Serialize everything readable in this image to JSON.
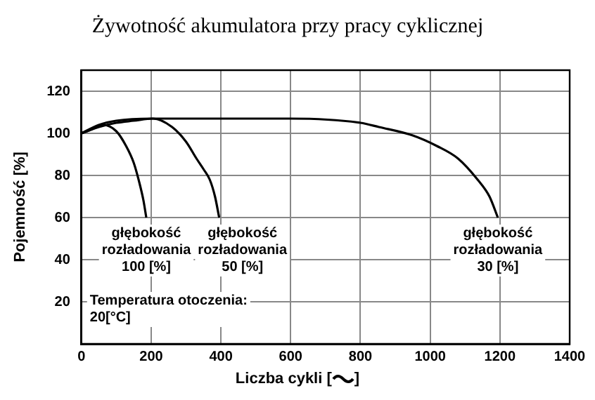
{
  "chart_data": {
    "type": "line",
    "title": "Żywotność akumulatora przy pracy cyklicznej",
    "xlabel": "Liczba cykli [ ]",
    "ylabel": "Pojemność [%]",
    "xlim": [
      0,
      1400
    ],
    "xticks": [
      0,
      200,
      400,
      600,
      800,
      1000,
      1200,
      1400
    ],
    "ylim": [
      0,
      130
    ],
    "yticks": [
      20,
      40,
      60,
      80,
      100,
      120
    ],
    "grid": true,
    "legend": false,
    "marker": "none",
    "line_style": "solid",
    "series": [
      {
        "name": "głębokość rozładowania 100 [%]",
        "color": "#000000",
        "x": [
          0,
          30,
          62,
          100,
          128,
          150,
          167,
          178,
          186
        ],
        "values": [
          100,
          102,
          104,
          101,
          94,
          86,
          76,
          68,
          60
        ]
      },
      {
        "name": "głębokość rozładowania 50 [%]",
        "color": "#000000",
        "x": [
          0,
          50,
          100,
          150,
          205,
          260,
          300,
          330,
          350,
          368,
          383,
          395
        ],
        "values": [
          100,
          103,
          105,
          106,
          107,
          103,
          96,
          88,
          83,
          78,
          70,
          60
        ]
      },
      {
        "name": "głębokość rozładowania 30 [%]",
        "color": "#000000",
        "x": [
          0,
          50,
          100,
          200,
          300,
          400,
          600,
          800,
          853,
          950,
          1019,
          1080,
          1136,
          1170,
          1194
        ],
        "values": [
          100,
          104,
          106,
          107,
          107,
          107,
          107,
          105,
          103,
          99,
          94,
          88,
          78,
          70,
          60
        ]
      }
    ],
    "annotations": [
      "Temperatura otoczenia: 20[°C]"
    ]
  }
}
